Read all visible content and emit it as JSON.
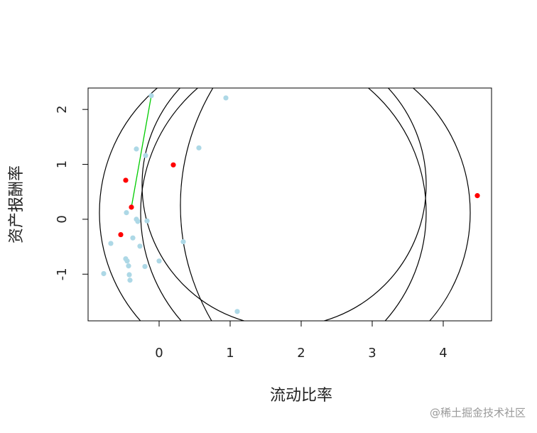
{
  "chart_data": {
    "type": "scatter",
    "x_label": "流动比率",
    "y_label": "资产报酬率",
    "xlim": [
      -1.0,
      4.68
    ],
    "ylim": [
      -1.85,
      2.39
    ],
    "xticks": [
      0,
      1,
      2,
      3,
      4
    ],
    "yticks": [
      -1,
      0,
      1,
      2
    ],
    "series": [
      {
        "color": "#add8e6",
        "x": [
          -0.11,
          0.94,
          -0.32,
          -0.19,
          0.56,
          -0.46,
          -0.32,
          -0.3,
          -0.17,
          -0.37,
          -0.68,
          -0.27,
          0.34,
          -0.47,
          -0.45,
          0.0,
          -0.43,
          -0.2,
          -0.78,
          -0.42,
          -0.41,
          1.1
        ],
        "values": [
          2.25,
          2.21,
          1.28,
          1.16,
          1.3,
          0.12,
          0.0,
          -0.04,
          -0.03,
          -0.34,
          -0.44,
          -0.49,
          -0.41,
          -0.72,
          -0.76,
          -0.76,
          -0.85,
          -0.86,
          -0.99,
          -1.01,
          -1.11,
          -1.68
        ]
      },
      {
        "color": "#ff0000",
        "x": [
          -0.47,
          0.2,
          -0.39,
          -0.54,
          4.48
        ],
        "values": [
          0.71,
          0.99,
          0.22,
          -0.28,
          0.43
        ]
      }
    ],
    "segment": {
      "color": "#00cc00",
      "x": [
        -0.39,
        -0.11
      ],
      "values": [
        0.22,
        2.25
      ]
    },
    "circles": [
      {
        "x": 3.52,
        "y": 0.25,
        "r": 3.22
      },
      {
        "x": 1.76,
        "y": 0.63,
        "r": 2.0
      },
      {
        "x": 1.46,
        "y": 0.12,
        "r": 2.3
      },
      {
        "x": 2.06,
        "y": 0.12,
        "r": 2.32
      }
    ],
    "watermark": "@稀土掘金技术社区"
  }
}
